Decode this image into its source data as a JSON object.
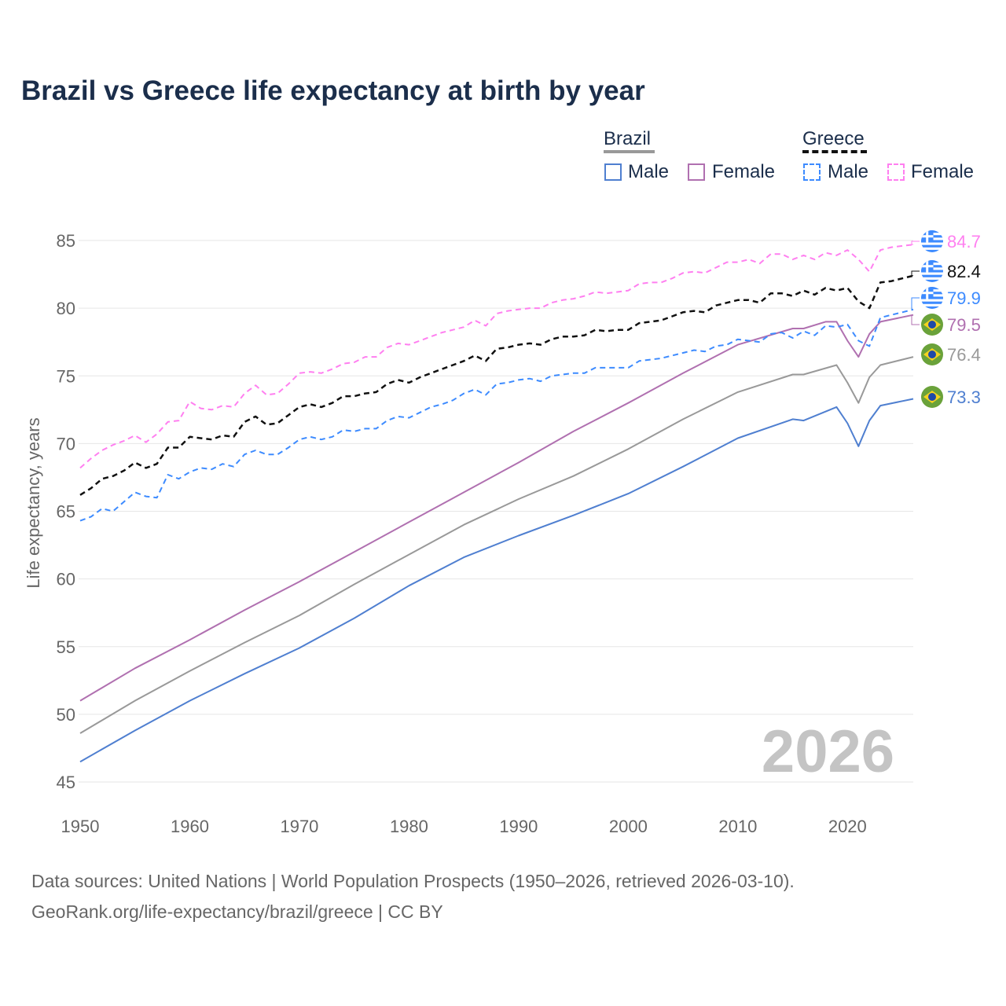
{
  "title": "Brazil vs Greece life expectancy at birth by year",
  "legend": {
    "brazil": "Brazil",
    "greece": "Greece",
    "male": "Male",
    "female": "Female"
  },
  "watermark_year": "2026",
  "source_line1": "Data sources: United Nations | World Population Prospects (1950–2026, retrieved 2026-03-10).",
  "source_line2": "GeoRank.org/life-expectancy/brazil/greece | CC BY",
  "chart_data": {
    "type": "line",
    "title": "Brazil vs Greece life expectancy at birth by year",
    "xlabel": "",
    "ylabel": "Life expectancy, years",
    "xlim": [
      1950,
      2026
    ],
    "ylim": [
      45,
      85
    ],
    "xticks": [
      1950,
      1960,
      1970,
      1980,
      1990,
      2000,
      2010,
      2020
    ],
    "yticks": [
      45,
      50,
      55,
      60,
      65,
      70,
      75,
      80,
      85
    ],
    "grid": true,
    "legend_position": "top-right",
    "series": [
      {
        "name": "Greece Female",
        "country": "Greece",
        "flag": "greece",
        "end_label": "84.7",
        "color": "#ff7ff0",
        "dash": true,
        "width": 2,
        "start_year": 1950,
        "values": [
          68.2,
          68.9,
          69.5,
          69.9,
          70.2,
          70.6,
          70.1,
          70.7,
          71.6,
          71.7,
          73.1,
          72.6,
          72.5,
          72.8,
          72.7,
          73.7,
          74.3,
          73.6,
          73.7,
          74.4,
          75.2,
          75.3,
          75.2,
          75.5,
          75.9,
          76.0,
          76.4,
          76.4,
          77.1,
          77.4,
          77.3,
          77.6,
          77.9,
          78.2,
          78.4,
          78.6,
          79.1,
          78.7,
          79.6,
          79.8,
          79.9,
          80.0,
          80.0,
          80.4,
          80.6,
          80.7,
          80.9,
          81.2,
          81.1,
          81.2,
          81.3,
          81.8,
          81.9,
          81.9,
          82.2,
          82.6,
          82.7,
          82.6,
          83.0,
          83.4,
          83.4,
          83.6,
          83.3,
          84.0,
          84.0,
          83.6,
          83.9,
          83.6,
          84.1,
          83.9,
          84.3,
          83.6,
          82.7,
          84.3,
          84.5,
          84.6,
          84.7
        ]
      },
      {
        "name": "Greece",
        "country": "Greece",
        "flag": "greece",
        "end_label": "82.4",
        "color": "#111111",
        "dash": true,
        "width": 2.5,
        "start_year": 1950,
        "values": [
          66.2,
          66.7,
          67.4,
          67.6,
          68.0,
          68.6,
          68.2,
          68.5,
          69.7,
          69.7,
          70.5,
          70.4,
          70.3,
          70.6,
          70.5,
          71.6,
          72.0,
          71.4,
          71.5,
          72.1,
          72.7,
          72.9,
          72.7,
          73.0,
          73.5,
          73.5,
          73.7,
          73.8,
          74.4,
          74.7,
          74.5,
          74.9,
          75.2,
          75.5,
          75.8,
          76.1,
          76.5,
          76.1,
          77.0,
          77.1,
          77.3,
          77.4,
          77.3,
          77.7,
          77.9,
          77.9,
          78.0,
          78.4,
          78.3,
          78.4,
          78.4,
          78.9,
          79.0,
          79.1,
          79.4,
          79.7,
          79.8,
          79.7,
          80.2,
          80.4,
          80.6,
          80.6,
          80.4,
          81.1,
          81.1,
          80.9,
          81.3,
          81.0,
          81.5,
          81.3,
          81.5,
          80.5,
          80.0,
          81.9,
          82.0,
          82.2,
          82.4
        ]
      },
      {
        "name": "Greece Male",
        "country": "Greece",
        "flag": "greece",
        "end_label": "79.9",
        "color": "#3d8bff",
        "dash": true,
        "width": 2,
        "start_year": 1950,
        "values": [
          64.3,
          64.6,
          65.2,
          65.0,
          65.7,
          66.4,
          66.1,
          66.0,
          67.7,
          67.4,
          67.9,
          68.2,
          68.1,
          68.5,
          68.3,
          69.2,
          69.5,
          69.2,
          69.2,
          69.7,
          70.3,
          70.5,
          70.3,
          70.5,
          71.0,
          70.9,
          71.1,
          71.1,
          71.7,
          72.0,
          71.9,
          72.3,
          72.7,
          72.9,
          73.2,
          73.7,
          74.0,
          73.6,
          74.4,
          74.5,
          74.7,
          74.8,
          74.6,
          75.0,
          75.1,
          75.2,
          75.2,
          75.6,
          75.6,
          75.6,
          75.6,
          76.1,
          76.2,
          76.3,
          76.5,
          76.7,
          76.9,
          76.8,
          77.2,
          77.3,
          77.7,
          77.6,
          77.5,
          78.1,
          78.2,
          77.8,
          78.3,
          78.0,
          78.7,
          78.6,
          78.8,
          77.6,
          77.2,
          79.3,
          79.5,
          79.7,
          79.9
        ]
      },
      {
        "name": "Brazil Female",
        "country": "Brazil",
        "flag": "brazil",
        "end_label": "79.5",
        "color": "#b070b0",
        "dash": false,
        "width": 2,
        "years": [
          1950,
          1955,
          1960,
          1965,
          1970,
          1975,
          1980,
          1985,
          1990,
          1995,
          2000,
          2005,
          2010,
          2015,
          2016,
          2018,
          2019,
          2020,
          2021,
          2022,
          2023,
          2026
        ],
        "values": [
          51.0,
          53.4,
          55.5,
          57.7,
          59.8,
          62.0,
          64.2,
          66.4,
          68.6,
          70.9,
          73.0,
          75.2,
          77.3,
          78.5,
          78.5,
          79.0,
          79.0,
          77.6,
          76.4,
          78.1,
          79.0,
          79.5
        ]
      },
      {
        "name": "Brazil",
        "country": "Brazil",
        "flag": "brazil",
        "end_label": "76.4",
        "color": "#999999",
        "dash": false,
        "width": 2,
        "years": [
          1950,
          1955,
          1960,
          1965,
          1970,
          1975,
          1980,
          1985,
          1990,
          1995,
          2000,
          2005,
          2010,
          2015,
          2016,
          2019,
          2020,
          2021,
          2022,
          2023,
          2026
        ],
        "values": [
          48.6,
          51.0,
          53.2,
          55.3,
          57.3,
          59.6,
          61.8,
          64.0,
          65.9,
          67.6,
          69.6,
          71.8,
          73.8,
          75.1,
          75.1,
          75.8,
          74.5,
          73.0,
          74.9,
          75.8,
          76.4
        ]
      },
      {
        "name": "Brazil Male",
        "country": "Brazil",
        "flag": "brazil",
        "end_label": "73.3",
        "color": "#4f7fd0",
        "dash": false,
        "width": 2,
        "years": [
          1950,
          1955,
          1960,
          1965,
          1970,
          1975,
          1980,
          1985,
          1990,
          1995,
          2000,
          2005,
          2010,
          2015,
          2016,
          2019,
          2020,
          2021,
          2022,
          2023,
          2026
        ],
        "values": [
          46.5,
          48.8,
          51.0,
          53.0,
          54.9,
          57.1,
          59.5,
          61.6,
          63.2,
          64.7,
          66.3,
          68.3,
          70.4,
          71.8,
          71.7,
          72.7,
          71.5,
          69.8,
          71.7,
          72.8,
          73.3
        ]
      }
    ]
  }
}
